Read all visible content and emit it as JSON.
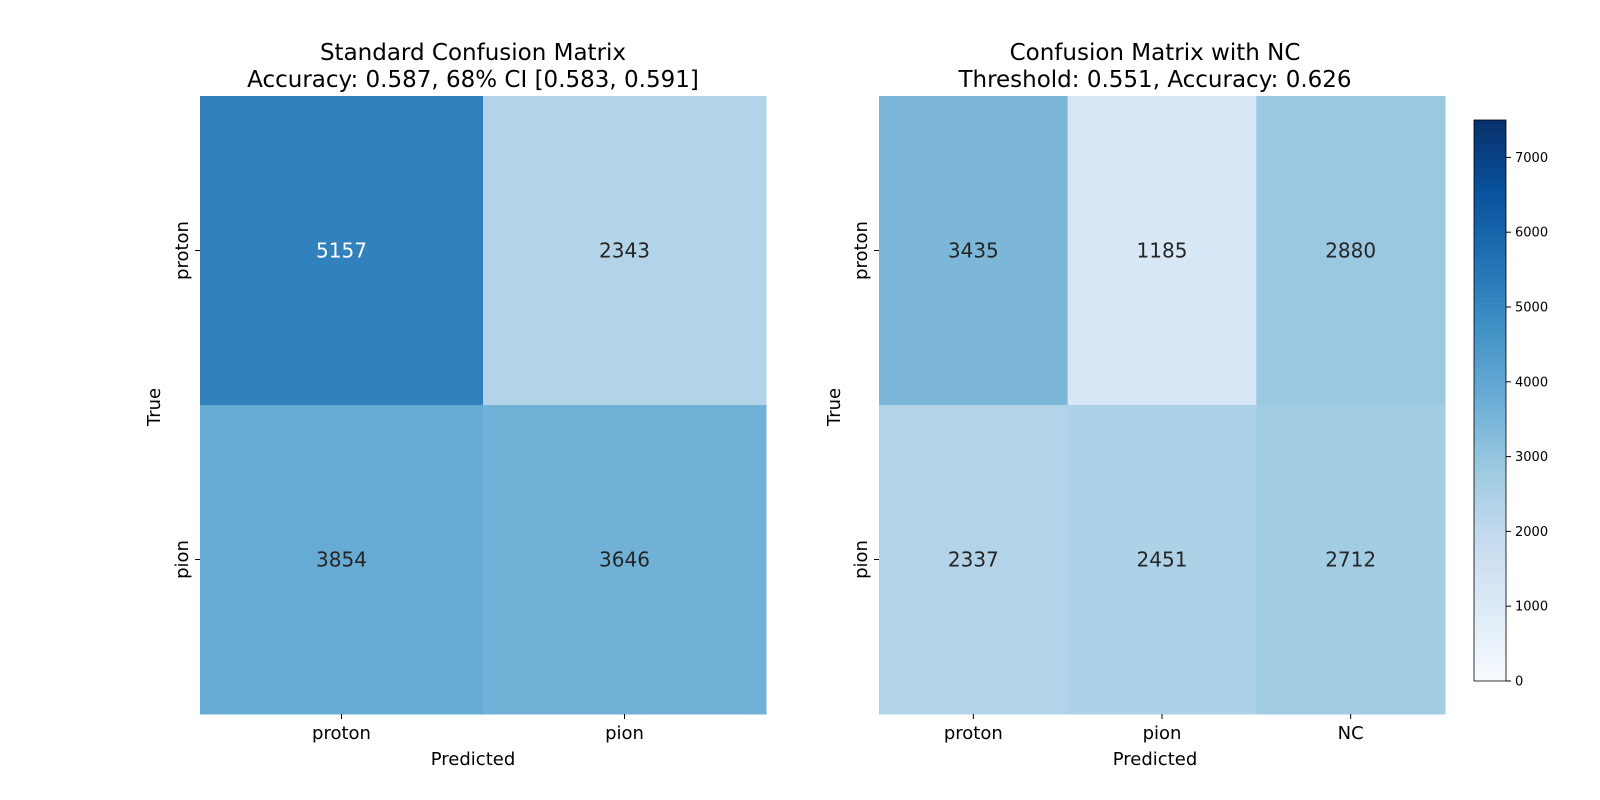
{
  "chart_data": [
    {
      "type": "heatmap",
      "title": "Standard Confusion Matrix",
      "subtitle": "Accuracy: 0.587, 68% CI [0.583, 0.591]",
      "xlabel": "Predicted",
      "ylabel": "True",
      "x_categories": [
        "proton",
        "pion"
      ],
      "y_categories": [
        "proton",
        "pion"
      ],
      "values": [
        [
          5157,
          2343
        ],
        [
          3854,
          3646
        ]
      ],
      "colormap": "Blues",
      "vmin": 0,
      "vmax": 7500
    },
    {
      "type": "heatmap",
      "title": "Confusion Matrix with NC",
      "subtitle": "Threshold: 0.551, Accuracy: 0.626",
      "xlabel": "Predicted",
      "ylabel": "True",
      "x_categories": [
        "proton",
        "pion",
        "NC"
      ],
      "y_categories": [
        "proton",
        "pion"
      ],
      "values": [
        [
          3435,
          1185,
          2880
        ],
        [
          2337,
          2451,
          2712
        ]
      ],
      "colormap": "Blues",
      "vmin": 0,
      "vmax": 7500
    }
  ],
  "colorbar": {
    "ticks": [
      "0",
      "1000",
      "2000",
      "3000",
      "4000",
      "5000",
      "6000",
      "7000"
    ],
    "min": 0,
    "max": 7500
  }
}
